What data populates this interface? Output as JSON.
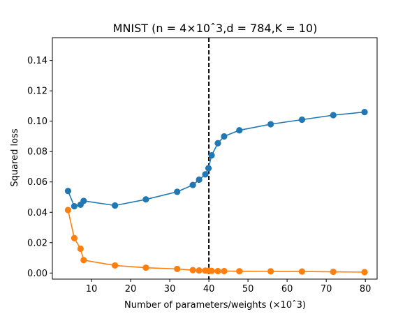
{
  "chart_data": {
    "type": "line",
    "title": "MNIST (n = 4×10ˆ3,d = 784,K = 10)",
    "xlabel": "Number of parameters/weights (×10ˆ3)",
    "ylabel": "Squared loss",
    "xlim": [
      0,
      83
    ],
    "ylim": [
      -0.004,
      0.155
    ],
    "xticks": [
      10,
      20,
      30,
      40,
      50,
      60,
      70,
      80
    ],
    "yticks": [
      0.0,
      0.02,
      0.04,
      0.06,
      0.08,
      0.1,
      0.12,
      0.14
    ],
    "ytick_labels": [
      "0.00",
      "0.02",
      "0.04",
      "0.06",
      "0.08",
      "0.10",
      "0.12",
      "0.14"
    ],
    "vline": 40,
    "grid": false,
    "series": [
      {
        "color": "#1f77b4",
        "points": [
          [
            4.0,
            0.054
          ],
          [
            5.6,
            0.044
          ],
          [
            7.2,
            0.045
          ],
          [
            8.0,
            0.0475
          ],
          [
            16.0,
            0.0445
          ],
          [
            23.9,
            0.0485
          ],
          [
            31.9,
            0.0535
          ],
          [
            35.9,
            0.058
          ],
          [
            37.5,
            0.0615
          ],
          [
            39.1,
            0.065
          ],
          [
            39.9,
            0.069
          ],
          [
            40.7,
            0.0775
          ],
          [
            42.3,
            0.0855
          ],
          [
            43.9,
            0.09
          ],
          [
            47.8,
            0.094
          ],
          [
            55.8,
            0.098
          ],
          [
            63.8,
            0.101
          ],
          [
            71.8,
            0.104
          ],
          [
            79.8,
            0.106
          ]
        ]
      },
      {
        "color": "#ff7f0e",
        "points": [
          [
            4.0,
            0.0415
          ],
          [
            5.6,
            0.023
          ],
          [
            7.2,
            0.016
          ],
          [
            8.0,
            0.0085
          ],
          [
            16.0,
            0.005
          ],
          [
            23.9,
            0.0035
          ],
          [
            31.9,
            0.0027
          ],
          [
            35.9,
            0.0019
          ],
          [
            37.5,
            0.0017
          ],
          [
            39.1,
            0.0016
          ],
          [
            39.9,
            0.0015
          ],
          [
            40.7,
            0.0014
          ],
          [
            42.3,
            0.0013
          ],
          [
            43.9,
            0.0013
          ],
          [
            47.8,
            0.0012
          ],
          [
            55.8,
            0.0011
          ],
          [
            63.8,
            0.001
          ],
          [
            71.8,
            0.0008
          ],
          [
            79.8,
            0.0006
          ]
        ]
      }
    ]
  }
}
